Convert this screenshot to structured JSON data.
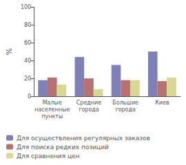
{
  "chart_data": {
    "type": "bar",
    "categories": [
      "Малые\nнаселенные\nпункты",
      "Средние\nгорода",
      "Большие\nгорода",
      "Киев"
    ],
    "series": [
      {
        "name": "Для осуществления регулярных заказов",
        "color": "#8080b8",
        "values": [
          18,
          44,
          35,
          50
        ]
      },
      {
        "name": "Для поиска редких позиций",
        "color": "#b87070",
        "values": [
          21,
          20,
          18,
          17
        ]
      },
      {
        "name": "Для сравнения цен",
        "color": "#d8d890",
        "values": [
          13,
          8,
          18,
          21
        ]
      }
    ],
    "ylabel": "%",
    "ylim": [
      0,
      100
    ],
    "yticks": [
      0,
      20,
      40,
      60,
      80,
      100
    ],
    "grid": false,
    "legend": "bottom"
  }
}
